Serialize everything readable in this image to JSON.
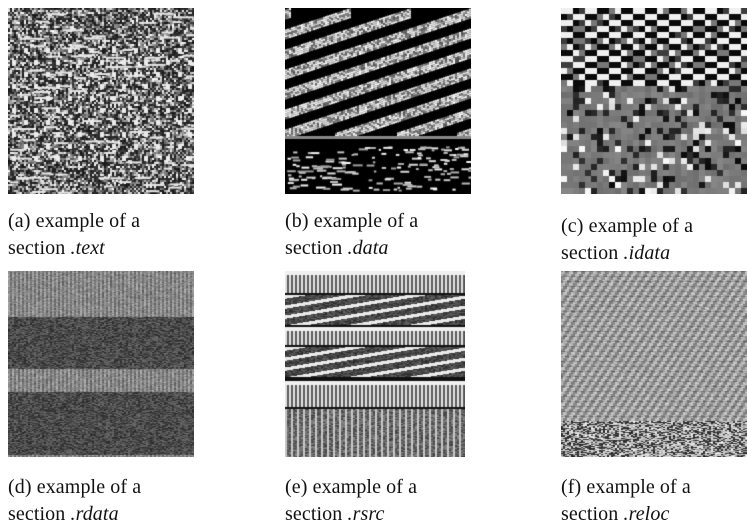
{
  "figure": {
    "panels": [
      {
        "id": "a",
        "tag": "(a)",
        "line1": "example of a",
        "line2_prefix": "section",
        "section": ".text",
        "texture": "text"
      },
      {
        "id": "b",
        "tag": "(b)",
        "line1": "example of a",
        "line2_prefix": "section",
        "section": ".data",
        "texture": "data"
      },
      {
        "id": "c",
        "tag": "(c)",
        "line1": "example of a",
        "line2_prefix": "section",
        "section": ".idata",
        "texture": "idata"
      },
      {
        "id": "d",
        "tag": "(d)",
        "line1": "example of a",
        "line2_prefix": "section",
        "section": ".rdata",
        "texture": "rdata"
      },
      {
        "id": "e",
        "tag": "(e)",
        "line1": "example of a",
        "line2_prefix": "section",
        "section": ".rsrc",
        "texture": "rsrc"
      },
      {
        "id": "f",
        "tag": "(f)",
        "line1": "example of a",
        "line2_prefix": "section",
        "section": ".reloc",
        "texture": "reloc"
      }
    ]
  }
}
